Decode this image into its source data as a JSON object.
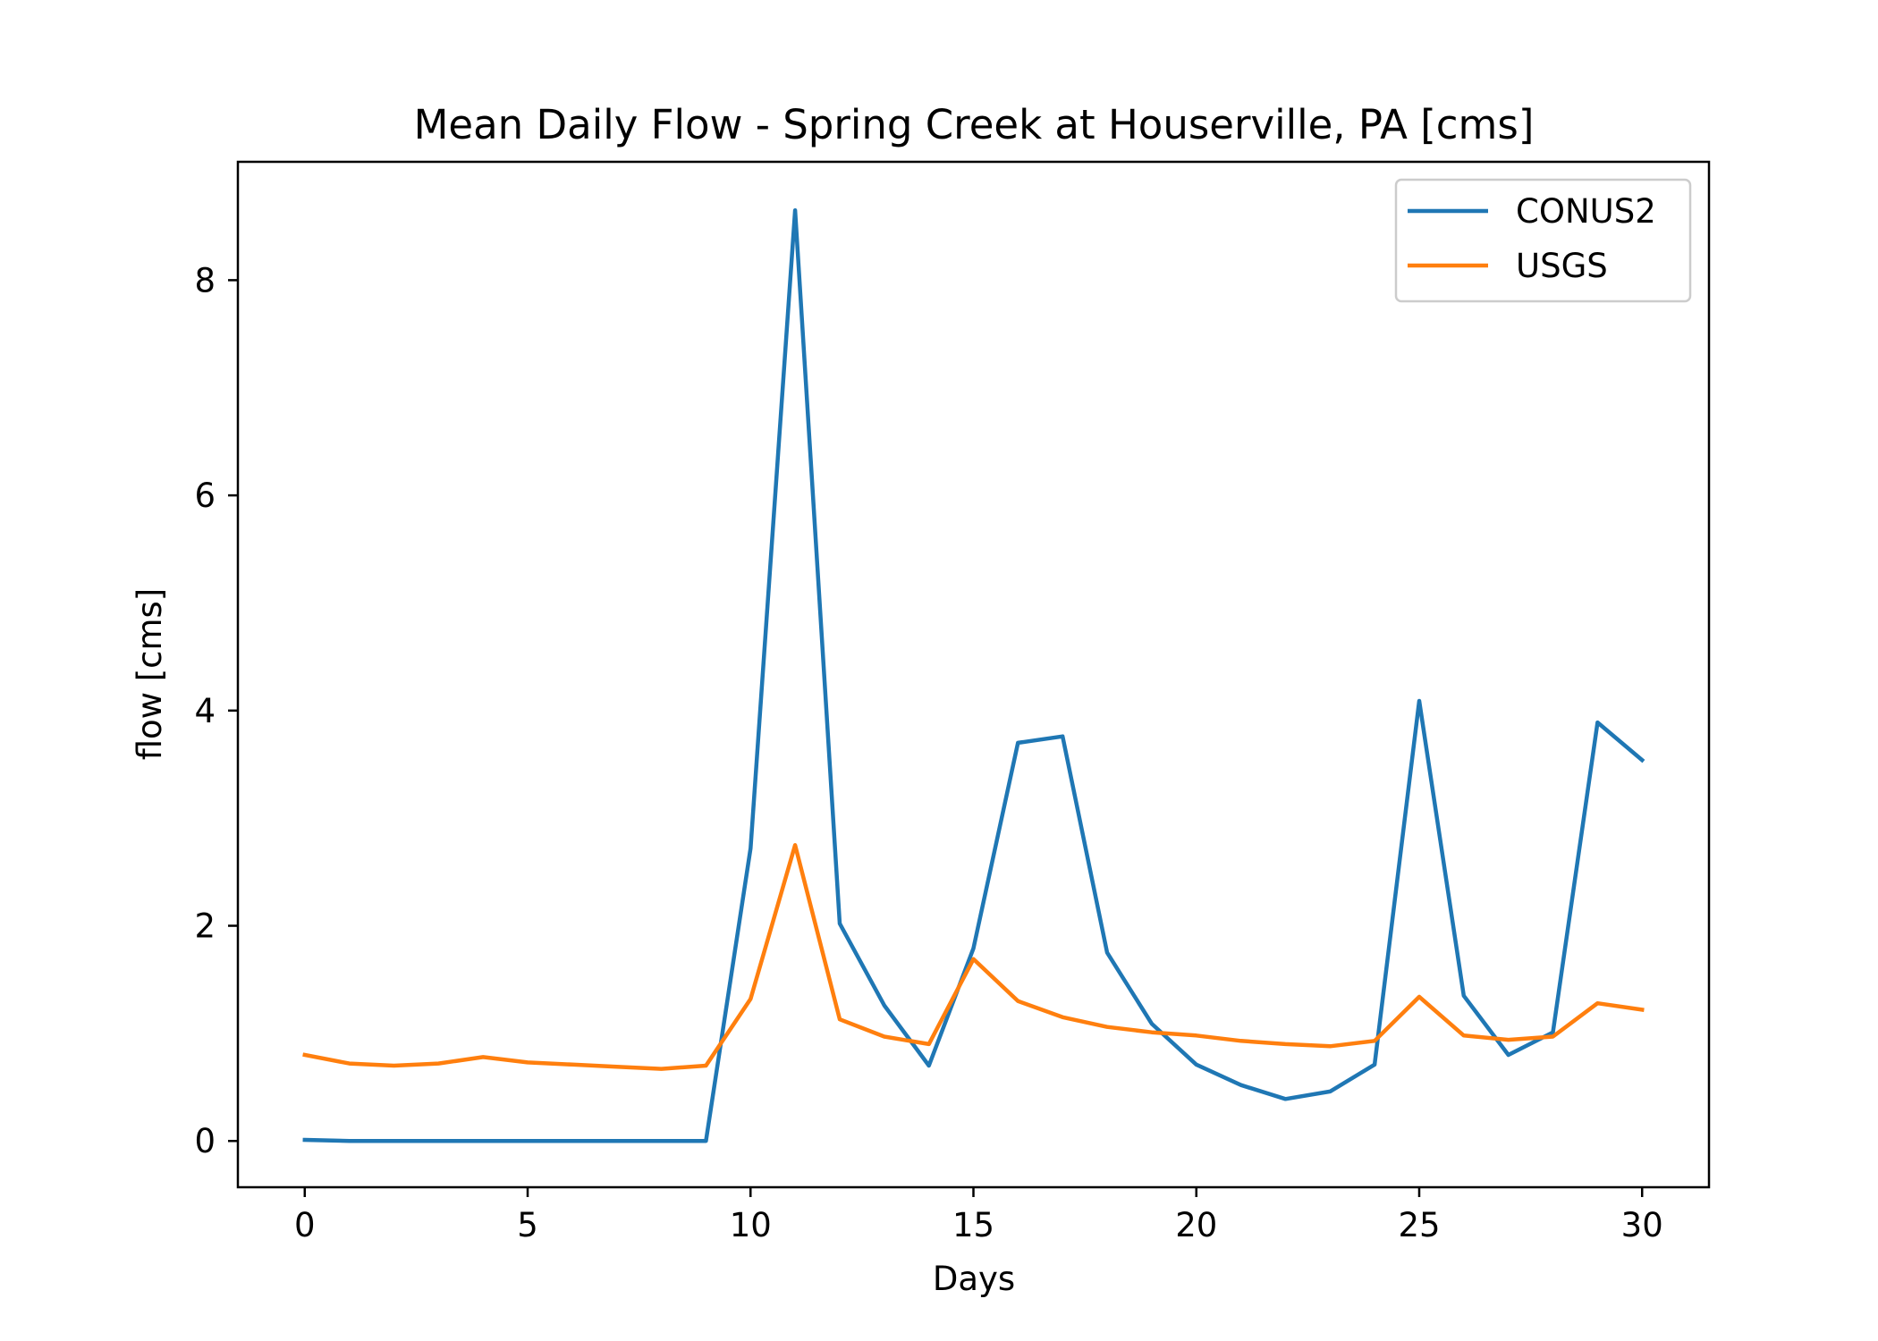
{
  "chart_data": {
    "type": "line",
    "title": "Mean Daily Flow - Spring Creek at Houserville, PA [cms]",
    "xlabel": "Days",
    "ylabel": "flow [cms]",
    "xlim": [
      -1.5,
      31.5
    ],
    "ylim": [
      -0.43,
      9.1
    ],
    "xticks": [
      0,
      5,
      10,
      15,
      20,
      25,
      30
    ],
    "yticks": [
      0,
      2,
      4,
      6,
      8
    ],
    "grid": false,
    "legend_position": "top-right",
    "x": [
      0,
      1,
      2,
      3,
      4,
      5,
      6,
      7,
      8,
      9,
      10,
      11,
      12,
      13,
      14,
      15,
      16,
      17,
      18,
      19,
      20,
      21,
      22,
      23,
      24,
      25,
      26,
      27,
      28,
      29,
      30
    ],
    "series": [
      {
        "name": "CONUS2",
        "color": "#1f77b4",
        "values": [
          0.01,
          0.0,
          0.0,
          0.0,
          0.0,
          0.0,
          0.0,
          0.0,
          0.0,
          0.0,
          2.72,
          8.65,
          2.02,
          1.26,
          0.7,
          1.79,
          3.7,
          3.76,
          1.75,
          1.09,
          0.71,
          0.52,
          0.39,
          0.46,
          0.71,
          4.09,
          1.35,
          0.8,
          1.01,
          3.89,
          3.54
        ]
      },
      {
        "name": "USGS",
        "color": "#ff7f0e",
        "values": [
          0.8,
          0.72,
          0.7,
          0.72,
          0.78,
          0.73,
          0.71,
          0.69,
          0.67,
          0.7,
          1.32,
          2.75,
          1.13,
          0.97,
          0.9,
          1.69,
          1.3,
          1.15,
          1.06,
          1.01,
          0.98,
          0.93,
          0.9,
          0.88,
          0.93,
          1.34,
          0.98,
          0.94,
          0.97,
          1.28,
          1.22
        ]
      }
    ]
  }
}
